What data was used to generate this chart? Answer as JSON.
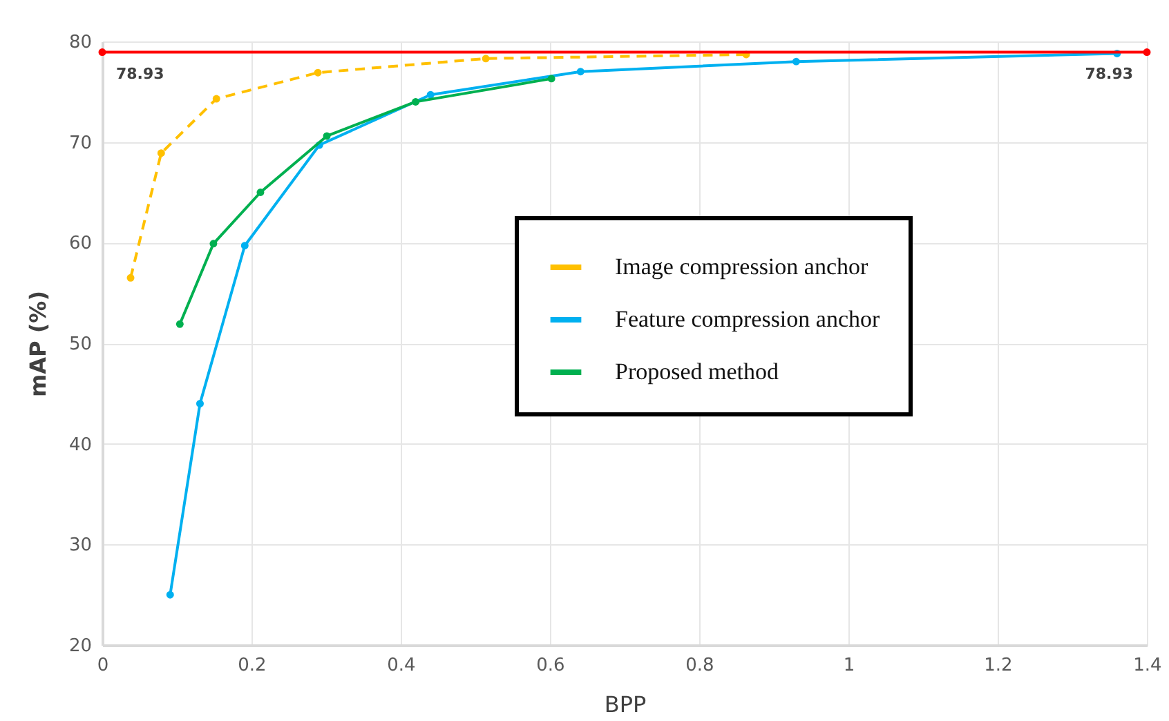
{
  "chart_data": {
    "type": "line",
    "xlabel": "BPP",
    "ylabel": "mAP (%)",
    "xlim": [
      0,
      1.4
    ],
    "xticks": [
      0,
      0.2,
      0.4,
      0.6,
      0.8,
      1,
      1.2,
      1.4
    ],
    "ylim": [
      20,
      80
    ],
    "yticks": [
      20,
      30,
      40,
      50,
      60,
      70,
      80
    ],
    "grid": true,
    "legend": "right",
    "marker": "circle",
    "series": [
      {
        "name": "Image compression anchor",
        "color": "#ffc000",
        "line_style": "dashed",
        "x": [
          0.038,
          0.079,
          0.153,
          0.289,
          0.514,
          0.863
        ],
        "values": [
          56.5,
          68.9,
          74.3,
          76.9,
          78.3,
          78.7
        ]
      },
      {
        "name": "Feature compression anchor",
        "color": "#00b0f0",
        "line_style": "solid",
        "x": [
          0.091,
          0.131,
          0.191,
          0.291,
          0.44,
          0.641,
          0.93,
          1.36
        ],
        "values": [
          25.0,
          44.0,
          59.7,
          69.7,
          74.7,
          77.0,
          78.0,
          78.8
        ]
      },
      {
        "name": "Proposed method",
        "color": "#00b050",
        "line_style": "solid",
        "x": [
          0.104,
          0.149,
          0.212,
          0.301,
          0.42,
          0.602
        ],
        "values": [
          51.9,
          59.9,
          65.0,
          70.6,
          74.0,
          76.3
        ]
      },
      {
        "color": "#ff0000",
        "line_style": "solid",
        "x": [
          0,
          1.4
        ],
        "values": [
          78.93,
          78.93
        ],
        "value_labels": [
          "78.93",
          "78.93"
        ]
      }
    ]
  }
}
